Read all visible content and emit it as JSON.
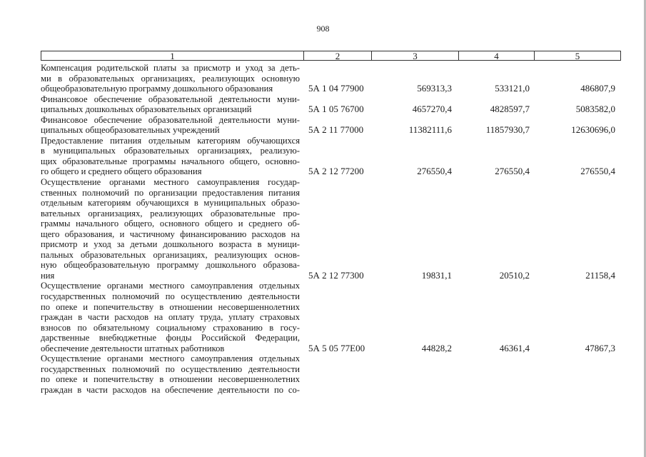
{
  "page_number": "908",
  "table": {
    "headers": [
      "1",
      "2",
      "3",
      "4",
      "5"
    ],
    "rows": [
      {
        "lines": [
          "Компенсация родительской платы за присмотр и уход за деть-",
          "ми в образовательных организациях, реализующих основную",
          "общеобразовательную программу дошкольного образования"
        ],
        "code": "5А 1 04 77900",
        "v3": "569313,3",
        "v4": "533121,0",
        "v5": "486807,9"
      },
      {
        "lines": [
          "Финансовое обеспечение образовательной деятельности муни-",
          "ципальных дошкольных образовательных организаций"
        ],
        "code": "5А 1 05 76700",
        "v3": "4657270,4",
        "v4": "4828597,7",
        "v5": "5083582,0"
      },
      {
        "lines": [
          "Финансовое обеспечение образовательной деятельности муни-",
          "ципальных общеобразовательных учреждений"
        ],
        "code": "5А 2 11 77000",
        "v3": "11382111,6",
        "v4": "11857930,7",
        "v5": "12630696,0"
      },
      {
        "lines": [
          "Предоставление питания отдельным категориям обучающихся",
          "в муниципальных образовательных организациях, реализую-",
          "щих образовательные программы начального общего, основно-",
          "го общего и среднего общего образования"
        ],
        "code": "5А 2 12 77200",
        "v3": "276550,4",
        "v4": "276550,4",
        "v5": "276550,4"
      },
      {
        "lines": [
          "Осуществление органами местного самоуправления государ-",
          "ственных полномочий по организации предоставления питания",
          "отдельным категориям обучающихся в муниципальных образо-",
          "вательных организациях, реализующих образовательные про-",
          "граммы начального общего, основного общего и среднего об-",
          "щего образования, и частичному  финансированию расходов на",
          "присмотр и уход за детьми дошкольного возраста в муници-",
          "пальных образовательных организациях, реализующих основ-",
          "ную общеобразовательную программу дошкольного образова-",
          "ния"
        ],
        "code": "5А 2 12 77300",
        "v3": "19831,1",
        "v4": "20510,2",
        "v5": "21158,4"
      },
      {
        "lines": [
          "Осуществление органами местного самоуправления отдельных",
          "государственных полномочий по осуществлению деятельности",
          "по опеке и попечительству в отношении несовершеннолетних",
          "граждан в части расходов на оплату труда, уплату страховых",
          "взносов по обязательному социальному страхованию в госу-",
          "дарственные внебюджетные фонды Российской Федерации,",
          "обеспечение деятельности штатных работников"
        ],
        "code": "5А 5 05 77Е00",
        "v3": "44828,2",
        "v4": "46361,4",
        "v5": "47867,3"
      },
      {
        "lines": [
          "Осуществление органами местного самоуправления отдельных",
          "государственных полномочий по осуществлению деятельности",
          "по опеке и попечительству в отношении несовершеннолетних",
          "граждан в части расходов на обеспечение деятельности по со-"
        ],
        "code": "",
        "v3": "",
        "v4": "",
        "v5": "",
        "continued": true
      }
    ]
  }
}
